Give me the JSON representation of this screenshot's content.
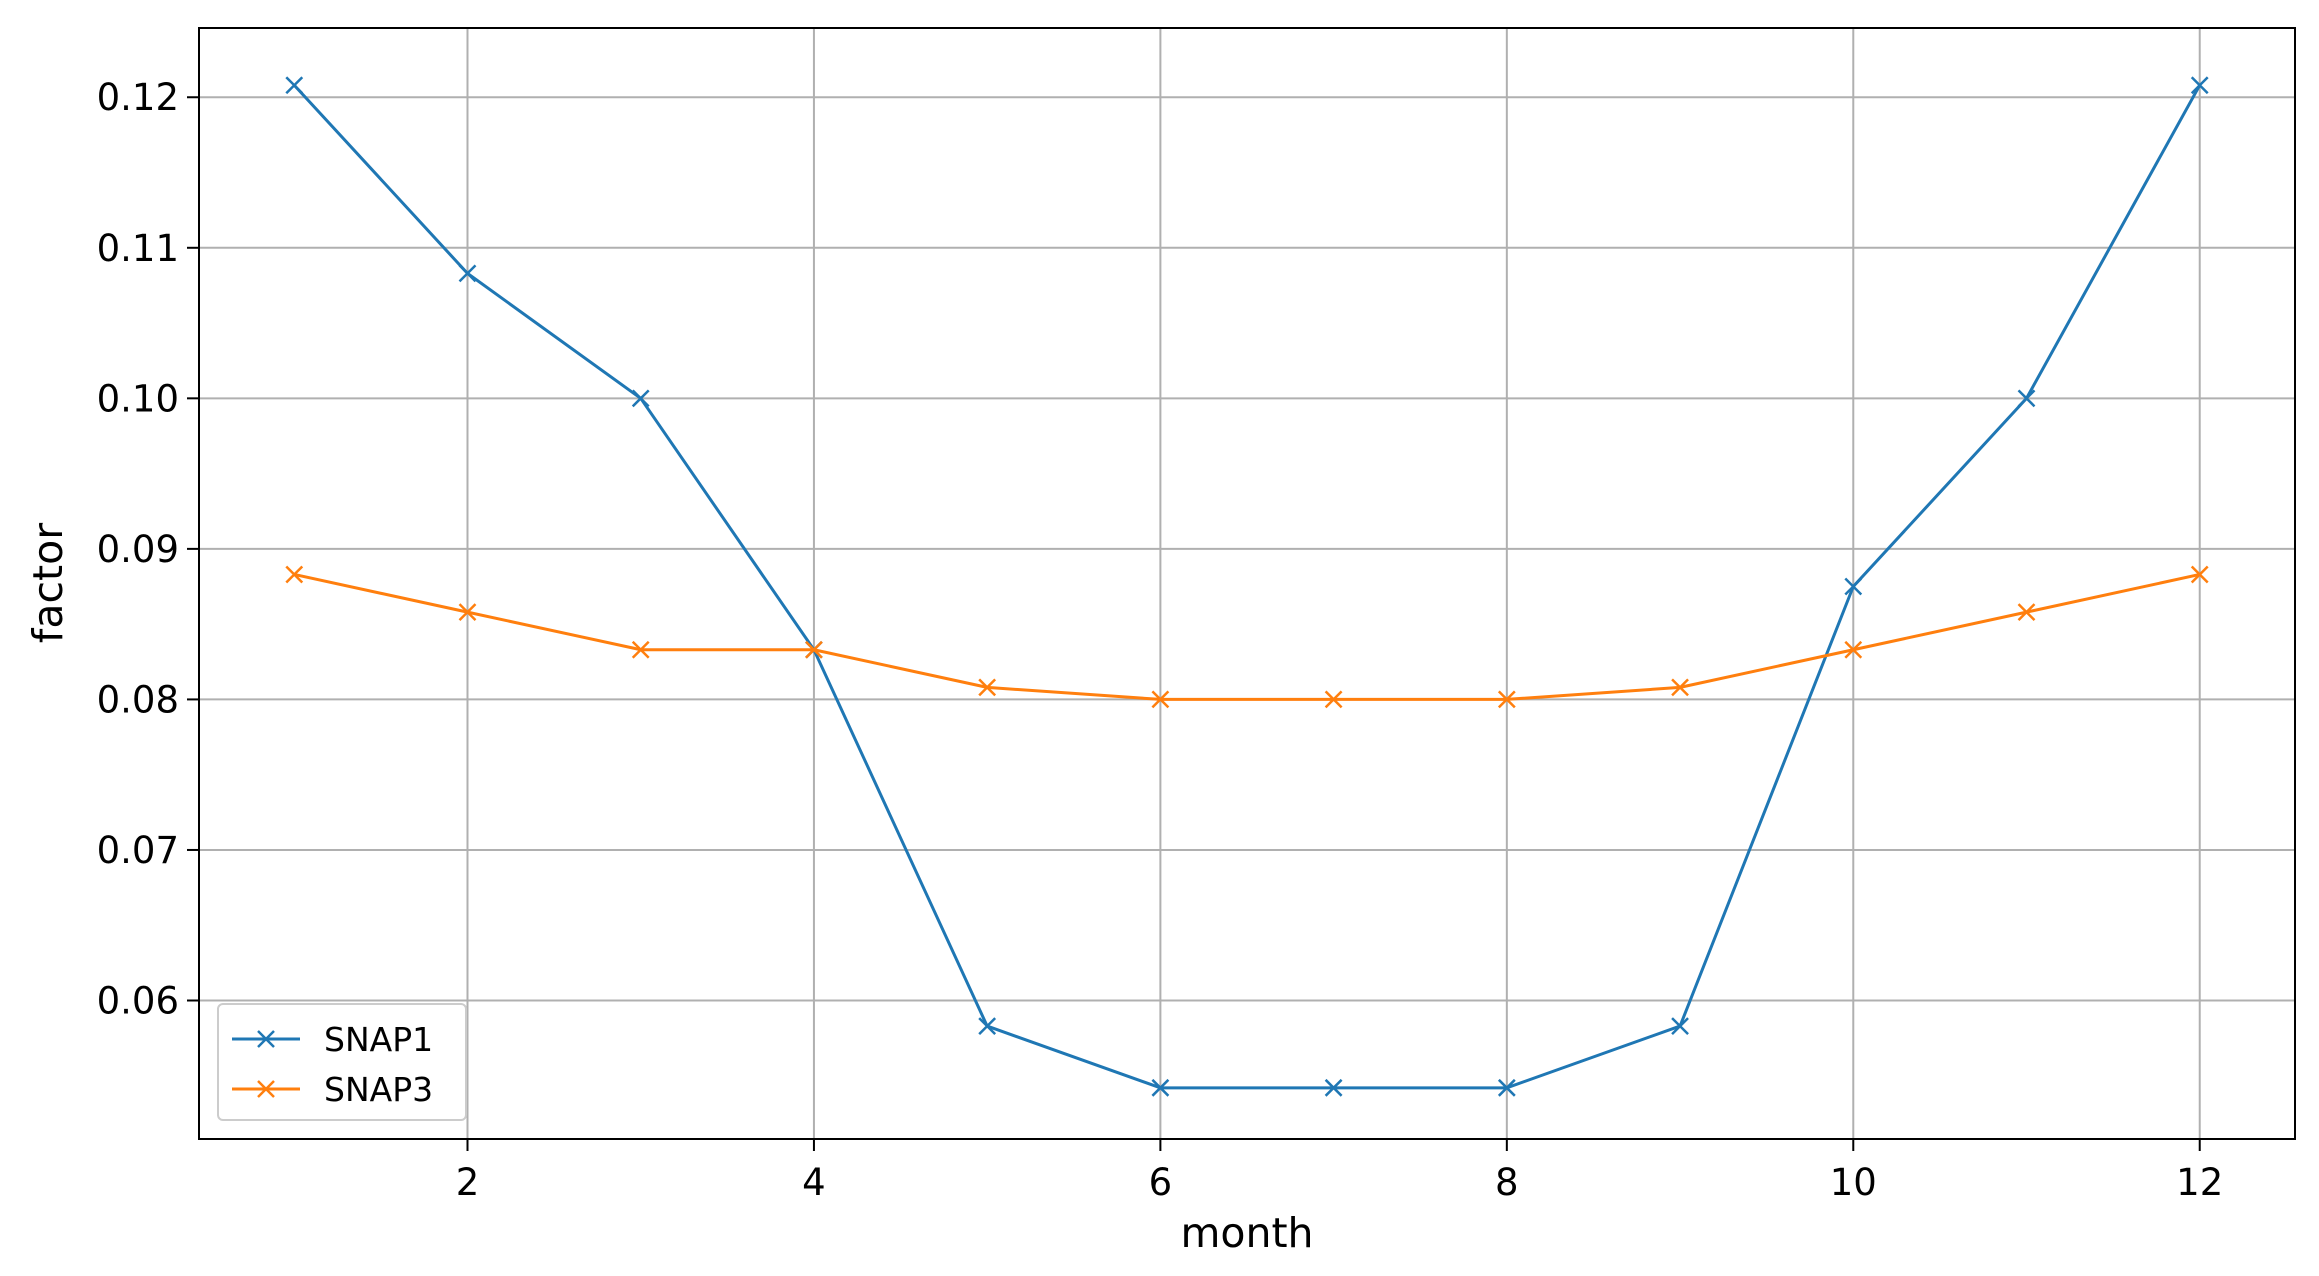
{
  "chart_data": {
    "type": "line",
    "title": "",
    "xlabel": "month",
    "ylabel": "factor",
    "xlim": [
      0.45,
      12.55
    ],
    "ylim": [
      0.0508,
      0.1246
    ],
    "xticks": [
      2,
      4,
      6,
      8,
      10,
      12
    ],
    "xtick_labels": [
      "2",
      "4",
      "6",
      "8",
      "10",
      "12"
    ],
    "yticks": [
      0.06,
      0.07,
      0.08,
      0.09,
      0.1,
      0.11,
      0.12
    ],
    "ytick_labels": [
      "0.06",
      "0.07",
      "0.08",
      "0.09",
      "0.10",
      "0.11",
      "0.12"
    ],
    "grid": true,
    "legend_position": "lower-left",
    "marker": "x",
    "x": [
      1,
      2,
      3,
      4,
      5,
      6,
      7,
      8,
      9,
      10,
      11,
      12
    ],
    "series": [
      {
        "name": "SNAP1",
        "color": "#1f77b4",
        "values": [
          0.1208,
          0.1083,
          0.1,
          0.0833,
          0.0583,
          0.0542,
          0.0542,
          0.0542,
          0.0583,
          0.0875,
          0.1,
          0.1208
        ]
      },
      {
        "name": "SNAP3",
        "color": "#ff7f0e",
        "values": [
          0.0883,
          0.0858,
          0.0833,
          0.0833,
          0.0808,
          0.08,
          0.08,
          0.08,
          0.0808,
          0.0833,
          0.0858,
          0.0883
        ]
      }
    ]
  }
}
